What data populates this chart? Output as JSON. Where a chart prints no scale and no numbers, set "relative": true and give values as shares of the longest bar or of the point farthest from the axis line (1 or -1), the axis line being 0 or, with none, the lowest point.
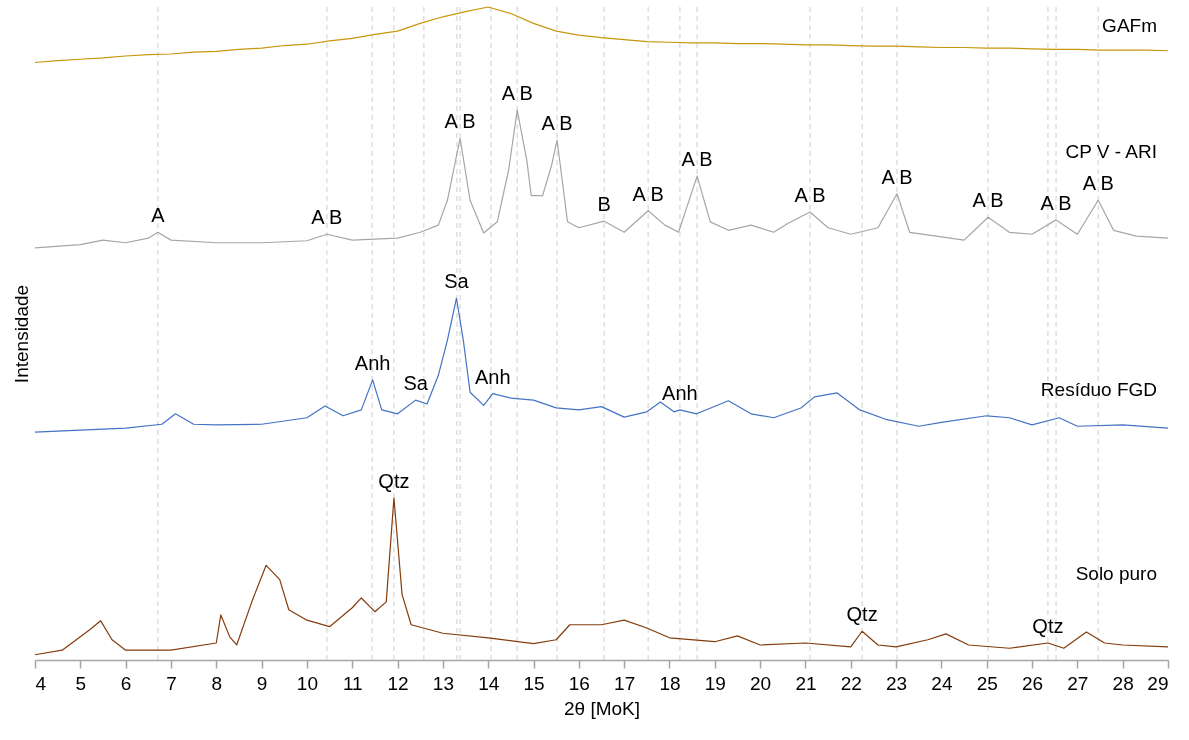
{
  "chart_data": {
    "type": "line",
    "xlabel": "2θ [MoK]",
    "ylabel": "Intensidade",
    "relative": true,
    "xlim": [
      4,
      29
    ],
    "xticks": [
      4,
      5,
      6,
      7,
      8,
      9,
      10,
      11,
      12,
      13,
      14,
      15,
      16,
      17,
      18,
      19,
      20,
      21,
      22,
      23,
      24,
      25,
      26,
      27,
      28,
      29
    ],
    "grid": false,
    "legend": false,
    "marker": "none",
    "line_style": "solid",
    "series": [
      {
        "name": "GAFm",
        "color": "#c8960c",
        "x": [
          4,
          4.5,
          5,
          5.5,
          6,
          6.5,
          7,
          7.5,
          8,
          8.5,
          9,
          9.5,
          10,
          10.5,
          11,
          11.5,
          12,
          12.5,
          13,
          13.5,
          14,
          14.5,
          15,
          15.5,
          16,
          16.5,
          17,
          17.5,
          18,
          18.5,
          19,
          19.5,
          20,
          20.5,
          21,
          21.5,
          22,
          22.5,
          23,
          23.5,
          24,
          24.5,
          25,
          25.5,
          26,
          26.5,
          27,
          27.5,
          28,
          28.5,
          29
        ],
        "values": [
          0.915,
          0.918,
          0.92,
          0.922,
          0.925,
          0.927,
          0.928,
          0.931,
          0.932,
          0.935,
          0.937,
          0.941,
          0.943,
          0.948,
          0.952,
          0.958,
          0.963,
          0.975,
          0.985,
          0.993,
          1.0,
          0.99,
          0.975,
          0.963,
          0.957,
          0.953,
          0.95,
          0.947,
          0.946,
          0.945,
          0.945,
          0.944,
          0.944,
          0.943,
          0.942,
          0.942,
          0.941,
          0.94,
          0.94,
          0.939,
          0.938,
          0.938,
          0.937,
          0.937,
          0.936,
          0.935,
          0.935,
          0.934,
          0.934,
          0.934,
          0.933
        ]
      },
      {
        "name": "CP V - ARI",
        "color": "#a6a6a6",
        "x": [
          4,
          5,
          5.5,
          6,
          6.5,
          6.71,
          7,
          8,
          9,
          10,
          10.44,
          11,
          12,
          12.5,
          12.9,
          13.1,
          13.38,
          13.6,
          13.9,
          14.2,
          14.45,
          14.64,
          14.85,
          14.95,
          15.2,
          15.4,
          15.52,
          15.75,
          16,
          16.56,
          17,
          17.53,
          17.9,
          18.2,
          18.61,
          18.9,
          19.3,
          19.8,
          20.3,
          20.6,
          21.1,
          21.5,
          22,
          22.6,
          23.02,
          23.3,
          24,
          24.5,
          25.03,
          25.5,
          26,
          26.53,
          27,
          27.46,
          27.8,
          28.3,
          29
        ],
        "values": [
          0.631,
          0.636,
          0.643,
          0.639,
          0.646,
          0.655,
          0.643,
          0.639,
          0.639,
          0.642,
          0.652,
          0.643,
          0.646,
          0.655,
          0.666,
          0.704,
          0.799,
          0.704,
          0.654,
          0.671,
          0.75,
          0.842,
          0.766,
          0.711,
          0.711,
          0.758,
          0.796,
          0.671,
          0.662,
          0.672,
          0.655,
          0.688,
          0.666,
          0.655,
          0.741,
          0.671,
          0.658,
          0.666,
          0.655,
          0.668,
          0.686,
          0.662,
          0.652,
          0.662,
          0.714,
          0.655,
          0.648,
          0.643,
          0.678,
          0.655,
          0.652,
          0.674,
          0.652,
          0.704,
          0.658,
          0.649,
          0.646
        ]
      },
      {
        "name": "Resíduo FGD",
        "color": "#4472c4",
        "x": [
          4,
          5,
          6,
          6.8,
          7.1,
          7.5,
          8,
          9,
          10,
          10.4,
          10.8,
          11.2,
          11.45,
          11.65,
          12,
          12.4,
          12.65,
          12.9,
          13.1,
          13.3,
          13.45,
          13.6,
          13.9,
          14.1,
          14.5,
          15,
          15.5,
          16,
          16.5,
          17,
          17.5,
          17.8,
          18.1,
          18.23,
          18.6,
          19.3,
          19.8,
          20.3,
          20.9,
          21.2,
          21.7,
          22.2,
          22.8,
          23.5,
          24,
          25,
          25.5,
          26,
          26.6,
          27,
          28,
          29
        ],
        "values": [
          0.349,
          0.352,
          0.355,
          0.361,
          0.377,
          0.361,
          0.36,
          0.361,
          0.371,
          0.389,
          0.374,
          0.383,
          0.429,
          0.383,
          0.377,
          0.398,
          0.392,
          0.436,
          0.49,
          0.554,
          0.49,
          0.41,
          0.39,
          0.408,
          0.401,
          0.398,
          0.386,
          0.383,
          0.388,
          0.372,
          0.38,
          0.395,
          0.38,
          0.383,
          0.377,
          0.397,
          0.377,
          0.371,
          0.386,
          0.403,
          0.409,
          0.383,
          0.368,
          0.358,
          0.364,
          0.374,
          0.371,
          0.36,
          0.371,
          0.358,
          0.36,
          0.355
        ]
      },
      {
        "name": "Solo puro",
        "color": "#843c0c",
        "x": [
          4,
          4.6,
          5.2,
          5.45,
          5.7,
          6,
          7,
          8,
          8.1,
          8.3,
          8.45,
          8.8,
          9.1,
          9.4,
          9.6,
          10,
          10.5,
          11,
          11.2,
          11.5,
          11.75,
          11.92,
          12.1,
          12.3,
          13,
          14,
          15,
          15.5,
          15.8,
          16.5,
          17,
          17.5,
          18,
          19,
          19.5,
          20,
          21,
          22,
          22.25,
          22.6,
          23,
          23.7,
          24.1,
          24.6,
          25.5,
          26.35,
          26.7,
          27.2,
          27.6,
          28,
          29
        ],
        "values": [
          0.008,
          0.015,
          0.046,
          0.06,
          0.031,
          0.015,
          0.015,
          0.026,
          0.069,
          0.035,
          0.023,
          0.092,
          0.145,
          0.123,
          0.077,
          0.061,
          0.051,
          0.08,
          0.095,
          0.074,
          0.089,
          0.248,
          0.1,
          0.054,
          0.041,
          0.034,
          0.025,
          0.031,
          0.054,
          0.054,
          0.061,
          0.049,
          0.034,
          0.028,
          0.037,
          0.023,
          0.026,
          0.02,
          0.044,
          0.023,
          0.02,
          0.031,
          0.04,
          0.023,
          0.018,
          0.026,
          0.018,
          0.043,
          0.026,
          0.023,
          0.02
        ]
      }
    ],
    "ref_lines": [
      {
        "axis": "x",
        "value": 6.71,
        "color": "#d9d9d9",
        "line_style": "dashed"
      },
      {
        "axis": "x",
        "value": 10.44,
        "color": "#d9d9d9",
        "line_style": "dashed"
      },
      {
        "axis": "x",
        "value": 11.44,
        "color": "#d9d9d9",
        "line_style": "dashed"
      },
      {
        "axis": "x",
        "value": 11.92,
        "color": "#d9d9d9",
        "line_style": "dashed"
      },
      {
        "axis": "x",
        "value": 12.58,
        "color": "#d9d9d9",
        "line_style": "dashed"
      },
      {
        "axis": "x",
        "value": 13.31,
        "color": "#d9d9d9",
        "line_style": "dashed"
      },
      {
        "axis": "x",
        "value": 13.38,
        "color": "#d9d9d9",
        "line_style": "dashed"
      },
      {
        "axis": "x",
        "value": 14.06,
        "color": "#d9d9d9",
        "line_style": "dashed"
      },
      {
        "axis": "x",
        "value": 14.64,
        "color": "#d9d9d9",
        "line_style": "dashed"
      },
      {
        "axis": "x",
        "value": 15.52,
        "color": "#d9d9d9",
        "line_style": "dashed"
      },
      {
        "axis": "x",
        "value": 16.56,
        "color": "#d9d9d9",
        "line_style": "dashed"
      },
      {
        "axis": "x",
        "value": 17.53,
        "color": "#d9d9d9",
        "line_style": "dashed"
      },
      {
        "axis": "x",
        "value": 18.23,
        "color": "#d9d9d9",
        "line_style": "dashed"
      },
      {
        "axis": "x",
        "value": 18.61,
        "color": "#d9d9d9",
        "line_style": "dashed"
      },
      {
        "axis": "x",
        "value": 21.1,
        "color": "#d9d9d9",
        "line_style": "dashed"
      },
      {
        "axis": "x",
        "value": 22.25,
        "color": "#d9d9d9",
        "line_style": "dashed"
      },
      {
        "axis": "x",
        "value": 23.02,
        "color": "#d9d9d9",
        "line_style": "dashed"
      },
      {
        "axis": "x",
        "value": 25.03,
        "color": "#d9d9d9",
        "line_style": "dashed"
      },
      {
        "axis": "x",
        "value": 26.35,
        "color": "#d9d9d9",
        "line_style": "dashed"
      },
      {
        "axis": "x",
        "value": 26.53,
        "color": "#d9d9d9",
        "line_style": "dashed"
      },
      {
        "axis": "x",
        "value": 27.46,
        "color": "#d9d9d9",
        "line_style": "dashed"
      }
    ],
    "annotations": [
      {
        "text": "A",
        "x": 6.71,
        "y": 0.655
      },
      {
        "text": "A B",
        "x": 10.44,
        "y": 0.652
      },
      {
        "text": "A B",
        "x": 13.38,
        "y": 0.799
      },
      {
        "text": "A B",
        "x": 14.64,
        "y": 0.842
      },
      {
        "text": "A B",
        "x": 15.52,
        "y": 0.796
      },
      {
        "text": "B",
        "x": 16.56,
        "y": 0.672
      },
      {
        "text": "A B",
        "x": 17.53,
        "y": 0.688
      },
      {
        "text": "A B",
        "x": 18.61,
        "y": 0.741
      },
      {
        "text": "A B",
        "x": 21.1,
        "y": 0.686
      },
      {
        "text": "A B",
        "x": 23.02,
        "y": 0.714
      },
      {
        "text": "A B",
        "x": 25.03,
        "y": 0.678
      },
      {
        "text": "A B",
        "x": 26.53,
        "y": 0.674
      },
      {
        "text": "A B",
        "x": 27.46,
        "y": 0.704
      },
      {
        "text": "Anh",
        "x": 11.45,
        "y": 0.429
      },
      {
        "text": "Sa",
        "x": 12.4,
        "y": 0.398
      },
      {
        "text": "Sa",
        "x": 13.3,
        "y": 0.554
      },
      {
        "text": "Anh",
        "x": 14.1,
        "y": 0.408
      },
      {
        "text": "Anh",
        "x": 18.23,
        "y": 0.383
      },
      {
        "text": "Qtz",
        "x": 11.92,
        "y": 0.248
      },
      {
        "text": "Qtz",
        "x": 22.25,
        "y": 0.044
      },
      {
        "text": "Qtz",
        "x": 26.35,
        "y": 0.026
      }
    ]
  }
}
